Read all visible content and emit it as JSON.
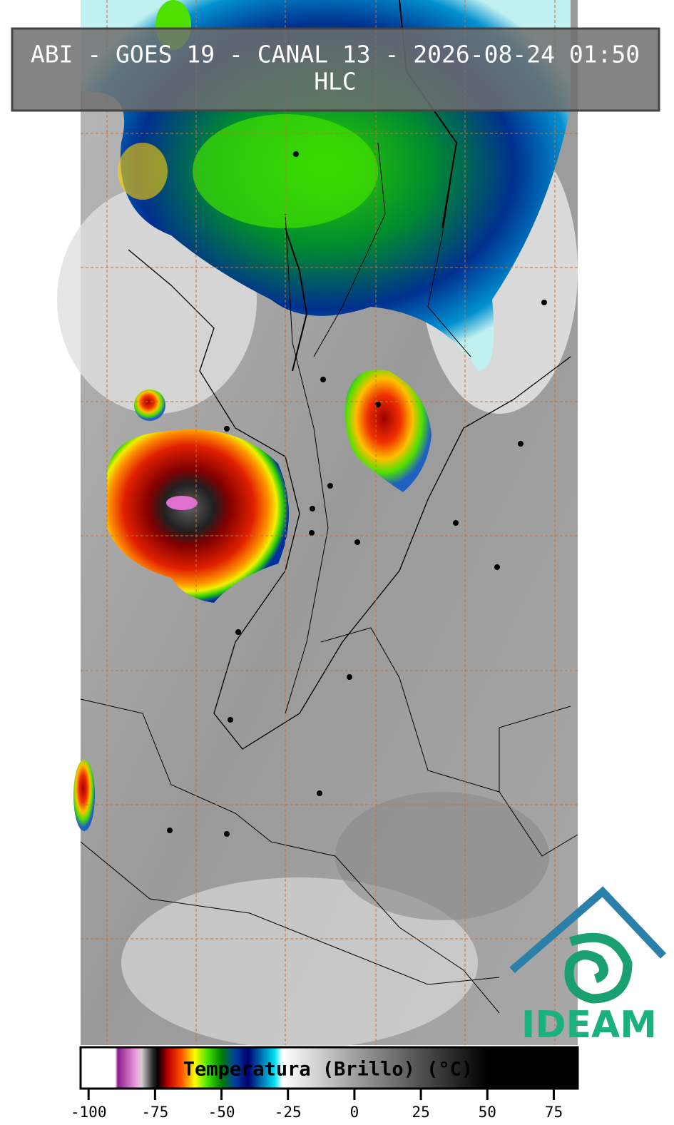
{
  "header": {
    "title": "ABI - GOES 19 - CANAL 13 - 2026-08-24 01:50",
    "subtitle": "HLC"
  },
  "colorbar": {
    "label": "Temperatura (Brillo) (°C)",
    "lim": [
      -103,
      84
    ],
    "ticks": [
      -100,
      -75,
      -50,
      -25,
      0,
      25,
      50,
      75
    ],
    "stops": [
      {
        "value": -103,
        "color": "#ffffff"
      },
      {
        "value": -90,
        "color": "#ffffff"
      },
      {
        "value": -89,
        "color": "#8a1a8a"
      },
      {
        "value": -82,
        "color": "#f0a0e0"
      },
      {
        "value": -80,
        "color": "#d0d0d0"
      },
      {
        "value": -76,
        "color": "#303030"
      },
      {
        "value": -74,
        "color": "#000000"
      },
      {
        "value": -70,
        "color": "#c00000"
      },
      {
        "value": -65,
        "color": "#ff5000"
      },
      {
        "value": -60,
        "color": "#ffff00"
      },
      {
        "value": -55,
        "color": "#40e000"
      },
      {
        "value": -50,
        "color": "#008000"
      },
      {
        "value": -45,
        "color": "#0040a0"
      },
      {
        "value": -40,
        "color": "#000070"
      },
      {
        "value": -30,
        "color": "#00e0f0"
      },
      {
        "value": -27,
        "color": "#ffffff"
      },
      {
        "value": 0,
        "color": "#a0a0a0"
      },
      {
        "value": 50,
        "color": "#000000"
      },
      {
        "value": 84,
        "color": "#000000"
      }
    ]
  },
  "logo": {
    "text": "IDEAM"
  }
}
